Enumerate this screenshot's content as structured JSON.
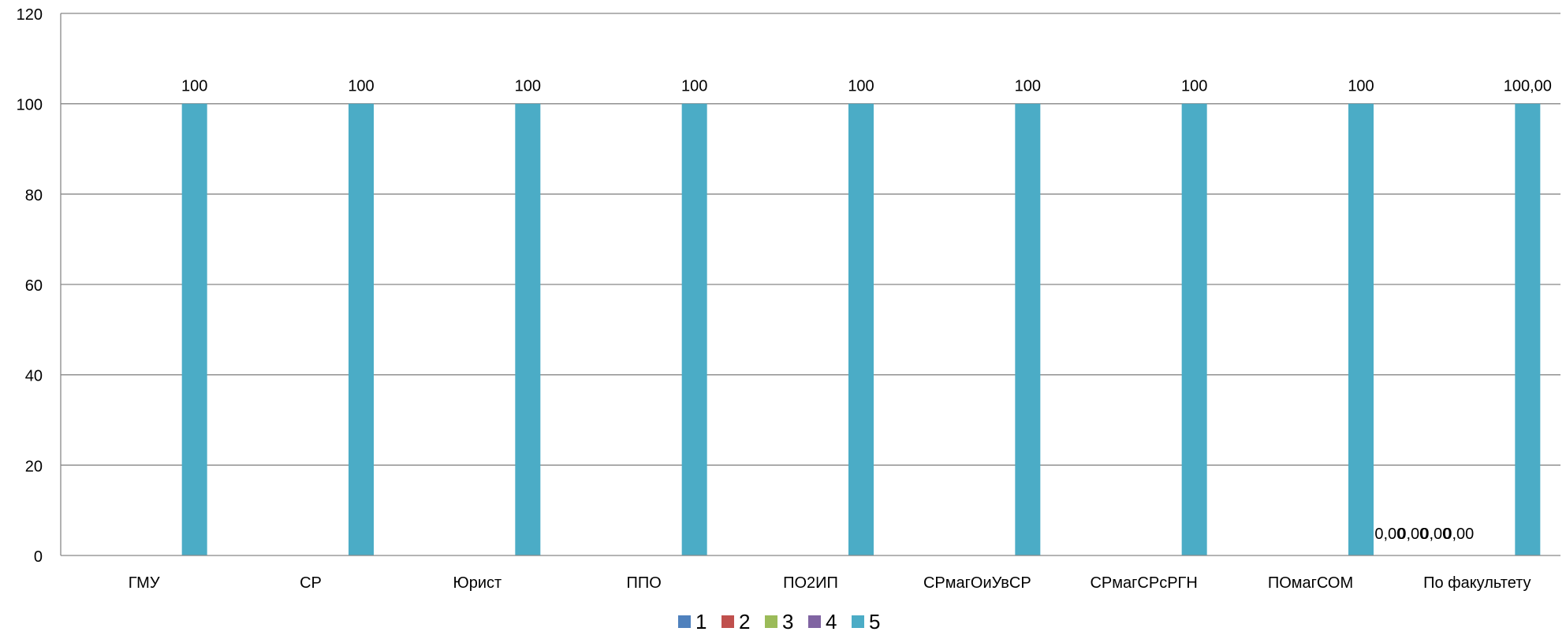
{
  "chart_data": {
    "type": "bar",
    "title": "",
    "xlabel": "",
    "ylabel": "",
    "ylim": [
      0,
      120
    ],
    "y_ticks": [
      "0",
      "20",
      "40",
      "60",
      "80",
      "100",
      "120"
    ],
    "grid": true,
    "legend_position": "bottom",
    "categories": [
      "ГМУ",
      "СР",
      "Юрист",
      "ППО",
      "ПО2ИП",
      "СРмагОиУвСР",
      "СРмагСРсРГН",
      "ПОмагСОМ",
      "По факультету"
    ],
    "series": [
      {
        "name": "1",
        "color": "#4F81BD",
        "values": [
          0,
          0,
          0,
          0,
          0,
          0,
          0,
          0,
          0
        ]
      },
      {
        "name": "2",
        "color": "#C0504D",
        "values": [
          0,
          0,
          0,
          0,
          0,
          0,
          0,
          0,
          0
        ]
      },
      {
        "name": "3",
        "color": "#9BBB59",
        "values": [
          0,
          0,
          0,
          0,
          0,
          0,
          0,
          0,
          0
        ]
      },
      {
        "name": "4",
        "color": "#8064A2",
        "values": [
          0,
          0,
          0,
          0,
          0,
          0,
          0,
          0,
          0
        ]
      },
      {
        "name": "5",
        "color": "#4BACC6",
        "values": [
          100,
          100,
          100,
          100,
          100,
          100,
          100,
          100,
          100
        ]
      }
    ],
    "data_labels": {
      "series_5": [
        "100",
        "100",
        "100",
        "100",
        "100",
        "100",
        "100",
        "100",
        "100,00"
      ],
      "last_category_small": [
        "0,00",
        "0,00",
        "0,00",
        "0,00"
      ]
    }
  }
}
